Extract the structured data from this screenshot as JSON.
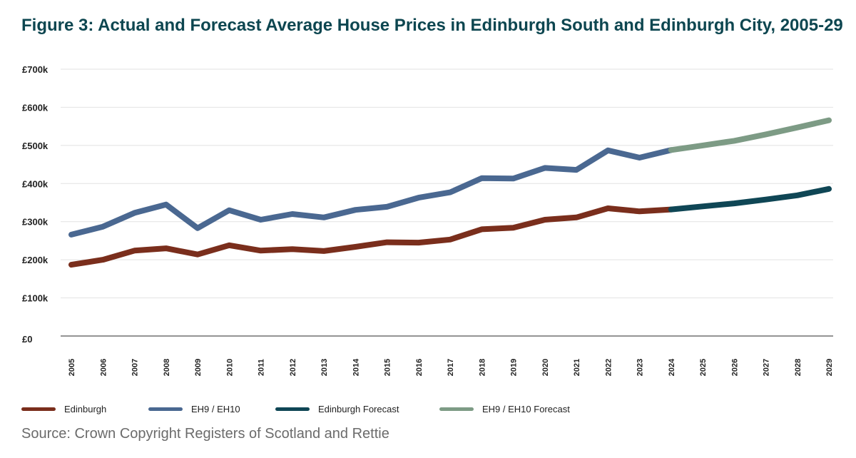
{
  "title": "Figure 3: Actual and Forecast Average House Prices in Edinburgh South and Edinburgh City, 2005-29",
  "source": "Source: Crown Copyright Registers of Scotland and Rettie",
  "chart_data": {
    "type": "line",
    "title": "Figure 3: Actual and Forecast Average House Prices in Edinburgh South and Edinburgh City, 2005-29",
    "xlabel": "",
    "ylabel": "",
    "ylim": [
      0,
      700000
    ],
    "yticks": [
      0,
      100000,
      200000,
      300000,
      400000,
      500000,
      600000,
      700000
    ],
    "ytick_labels": [
      "£0",
      "£100k",
      "£200k",
      "£300k",
      "£400k",
      "£500k",
      "£600k",
      "£700k"
    ],
    "categories": [
      "2005",
      "2006",
      "2007",
      "2008",
      "2009",
      "2010",
      "2011",
      "2012",
      "2013",
      "2014",
      "2015",
      "2016",
      "2017",
      "2018",
      "2019",
      "2020",
      "2021",
      "2022",
      "2023",
      "2024",
      "2025",
      "2026",
      "2027",
      "2028",
      "2029"
    ],
    "grid": true,
    "legend_position": "bottom",
    "series": [
      {
        "name": "Edinburgh",
        "color": "#7a2e1c",
        "values": [
          187000,
          200000,
          224000,
          230000,
          214000,
          238000,
          224000,
          228000,
          223000,
          234000,
          246000,
          245000,
          253000,
          280000,
          284000,
          305000,
          311000,
          335000,
          327000,
          332000,
          null,
          null,
          null,
          null,
          null
        ]
      },
      {
        "name": "EH9 / EH10",
        "color": "#4a6891",
        "values": [
          266000,
          287000,
          323000,
          345000,
          283000,
          330000,
          305000,
          320000,
          311000,
          331000,
          339000,
          363000,
          377000,
          414000,
          413000,
          441000,
          436000,
          487000,
          468000,
          488000,
          null,
          null,
          null,
          null,
          null
        ]
      },
      {
        "name": "Edinburgh Forecast",
        "color": "#0f4655",
        "values": [
          null,
          null,
          null,
          null,
          null,
          null,
          null,
          null,
          null,
          null,
          null,
          null,
          null,
          null,
          null,
          null,
          null,
          null,
          null,
          332000,
          340000,
          348000,
          358000,
          369000,
          386000
        ]
      },
      {
        "name": "EH9 / EH10 Forecast",
        "color": "#7d9b85",
        "values": [
          null,
          null,
          null,
          null,
          null,
          null,
          null,
          null,
          null,
          null,
          null,
          null,
          null,
          null,
          null,
          null,
          null,
          null,
          null,
          488000,
          500000,
          512000,
          529000,
          547000,
          566000
        ]
      }
    ]
  }
}
